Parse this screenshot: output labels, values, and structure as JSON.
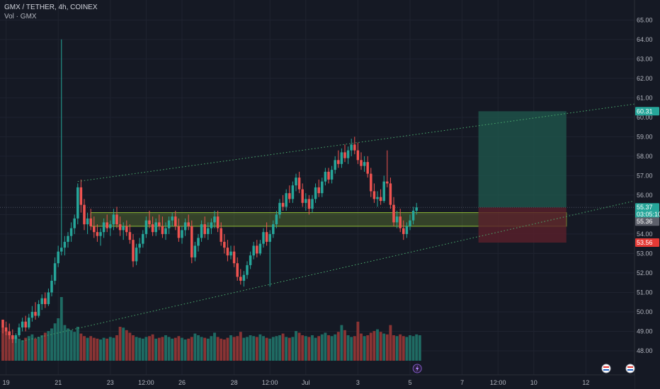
{
  "header": {
    "symbol_line": "GMX / TETHER, 4h, COINEX",
    "volume_line": "Vol · GMX"
  },
  "colors": {
    "background": "#151924",
    "grid": "#1f2330",
    "up": "#26a69a",
    "down": "#ef5350",
    "vol_up": "#1f6b63",
    "vol_down": "#8a3434",
    "zone": "#a5d63a",
    "target": "#1f5a4e",
    "stop": "#5a1f2a",
    "trend": "#4caf70"
  },
  "chart_data": {
    "type": "candlestick",
    "ylim": [
      47.2,
      65.3
    ],
    "y_ticks": [
      48,
      49,
      50,
      51,
      52,
      53,
      54,
      55,
      56,
      57,
      58,
      59,
      60,
      61,
      62,
      63,
      64,
      65
    ],
    "y_tick_labels": [
      "48.00",
      "49.00",
      "50.00",
      "51.00",
      "52.00",
      "53.00",
      "54.00",
      "55.00",
      "56.00",
      "57.00",
      "58.00",
      "59.00",
      "60.00",
      "61.00",
      "62.00",
      "63.00",
      "64.00",
      "65.00"
    ],
    "x_ticks": [
      {
        "bar": 1,
        "label": "19"
      },
      {
        "bar": 17,
        "label": "21"
      },
      {
        "bar": 33,
        "label": "23"
      },
      {
        "bar": 44,
        "label": "12:00"
      },
      {
        "bar": 55,
        "label": "26"
      },
      {
        "bar": 71,
        "label": "28"
      },
      {
        "bar": 82,
        "label": "12:00"
      },
      {
        "bar": 93,
        "label": "Jul"
      },
      {
        "bar": 109,
        "label": "3"
      },
      {
        "bar": 125,
        "label": "5"
      },
      {
        "bar": 141,
        "label": "7"
      },
      {
        "bar": 152,
        "label": "12:00"
      },
      {
        "bar": 163,
        "label": "10"
      },
      {
        "bar": 179,
        "label": "12"
      }
    ],
    "candles": [
      [
        49.6,
        49.6,
        48.9,
        49.2
      ],
      [
        49.2,
        49.5,
        48.8,
        49.0
      ],
      [
        49.0,
        49.4,
        48.6,
        48.8
      ],
      [
        48.8,
        49.1,
        48.4,
        48.6
      ],
      [
        48.6,
        48.9,
        48.4,
        48.8
      ],
      [
        48.8,
        49.4,
        48.7,
        49.2
      ],
      [
        49.2,
        49.7,
        49.0,
        49.5
      ],
      [
        49.5,
        49.8,
        49.0,
        49.2
      ],
      [
        49.2,
        49.9,
        49.1,
        49.7
      ],
      [
        49.7,
        50.3,
        49.5,
        50.0
      ],
      [
        50.0,
        50.5,
        49.6,
        49.8
      ],
      [
        49.8,
        50.6,
        49.7,
        50.4
      ],
      [
        50.4,
        50.9,
        50.1,
        50.7
      ],
      [
        50.7,
        51.0,
        50.2,
        50.4
      ],
      [
        50.4,
        51.2,
        50.3,
        51.0
      ],
      [
        51.0,
        51.9,
        50.8,
        51.6
      ],
      [
        51.6,
        52.8,
        51.4,
        52.5
      ],
      [
        52.5,
        53.4,
        52.3,
        53.1
      ],
      [
        53.1,
        64.0,
        52.9,
        53.3
      ],
      [
        53.3,
        53.9,
        52.9,
        53.6
      ],
      [
        53.6,
        54.1,
        53.3,
        53.9
      ],
      [
        53.9,
        54.6,
        53.6,
        54.3
      ],
      [
        54.3,
        55.0,
        54.0,
        54.8
      ],
      [
        54.8,
        56.6,
        54.5,
        56.4
      ],
      [
        56.4,
        56.8,
        55.1,
        55.5
      ],
      [
        55.5,
        55.8,
        54.2,
        54.5
      ],
      [
        54.5,
        55.1,
        54.0,
        54.8
      ],
      [
        54.8,
        55.3,
        54.2,
        54.4
      ],
      [
        54.4,
        54.9,
        53.8,
        54.1
      ],
      [
        54.1,
        54.5,
        53.6,
        53.9
      ],
      [
        53.9,
        54.3,
        53.4,
        54.1
      ],
      [
        54.1,
        54.8,
        53.8,
        54.6
      ],
      [
        54.6,
        55.0,
        54.1,
        54.3
      ],
      [
        54.3,
        54.7,
        53.9,
        54.5
      ],
      [
        54.5,
        55.3,
        54.2,
        55.0
      ],
      [
        55.0,
        55.4,
        54.3,
        54.5
      ],
      [
        54.5,
        54.9,
        53.9,
        54.2
      ],
      [
        54.2,
        54.6,
        53.7,
        54.4
      ],
      [
        54.4,
        54.7,
        53.9,
        54.1
      ],
      [
        54.1,
        54.5,
        53.5,
        53.7
      ],
      [
        53.7,
        54.0,
        52.3,
        52.6
      ],
      [
        52.6,
        53.5,
        52.4,
        53.3
      ],
      [
        53.3,
        53.8,
        53.0,
        53.5
      ],
      [
        53.5,
        54.2,
        53.3,
        54.0
      ],
      [
        54.0,
        54.9,
        53.8,
        54.7
      ],
      [
        54.7,
        55.2,
        54.3,
        54.5
      ],
      [
        54.5,
        54.9,
        53.9,
        54.1
      ],
      [
        54.1,
        54.8,
        53.9,
        54.6
      ],
      [
        54.6,
        55.0,
        54.2,
        54.4
      ],
      [
        54.4,
        54.9,
        53.8,
        54.0
      ],
      [
        54.0,
        54.6,
        53.7,
        54.3
      ],
      [
        54.3,
        54.9,
        54.0,
        54.7
      ],
      [
        54.7,
        55.1,
        54.4,
        54.9
      ],
      [
        54.9,
        55.2,
        54.2,
        54.4
      ],
      [
        54.4,
        54.8,
        53.6,
        53.8
      ],
      [
        53.8,
        54.4,
        53.5,
        54.2
      ],
      [
        54.2,
        54.8,
        53.9,
        54.6
      ],
      [
        54.6,
        55.0,
        54.2,
        54.4
      ],
      [
        54.4,
        54.7,
        52.5,
        52.8
      ],
      [
        52.8,
        53.6,
        52.6,
        53.4
      ],
      [
        53.4,
        54.0,
        53.1,
        53.8
      ],
      [
        53.8,
        54.7,
        53.6,
        54.5
      ],
      [
        54.5,
        54.9,
        53.8,
        54.0
      ],
      [
        54.0,
        54.6,
        53.7,
        54.3
      ],
      [
        54.3,
        54.8,
        54.0,
        54.6
      ],
      [
        54.6,
        55.2,
        54.3,
        54.9
      ],
      [
        54.9,
        55.2,
        54.1,
        54.3
      ],
      [
        54.3,
        54.6,
        53.4,
        53.6
      ],
      [
        53.6,
        54.0,
        53.0,
        53.3
      ],
      [
        53.3,
        53.7,
        52.6,
        52.9
      ],
      [
        52.9,
        53.4,
        52.7,
        53.1
      ],
      [
        53.1,
        53.4,
        52.3,
        52.5
      ],
      [
        52.5,
        52.8,
        51.6,
        51.8
      ],
      [
        51.8,
        52.2,
        51.4,
        51.6
      ],
      [
        51.6,
        52.1,
        51.3,
        51.9
      ],
      [
        51.9,
        52.6,
        51.7,
        52.4
      ],
      [
        52.4,
        53.1,
        52.2,
        52.9
      ],
      [
        52.9,
        53.6,
        52.7,
        53.4
      ],
      [
        53.4,
        53.7,
        52.8,
        53.0
      ],
      [
        53.0,
        53.7,
        52.9,
        53.5
      ],
      [
        53.5,
        54.3,
        53.3,
        54.1
      ],
      [
        54.1,
        54.6,
        53.4,
        53.6
      ],
      [
        53.6,
        54.2,
        51.3,
        54.0
      ],
      [
        54.0,
        54.7,
        53.8,
        54.5
      ],
      [
        54.5,
        55.2,
        54.3,
        55.0
      ],
      [
        55.0,
        55.8,
        54.8,
        55.6
      ],
      [
        55.6,
        56.0,
        55.2,
        55.4
      ],
      [
        55.4,
        56.3,
        55.2,
        56.1
      ],
      [
        56.1,
        56.5,
        55.6,
        55.8
      ],
      [
        55.8,
        56.7,
        55.6,
        56.5
      ],
      [
        56.5,
        57.1,
        56.2,
        56.9
      ],
      [
        56.9,
        57.2,
        56.1,
        56.3
      ],
      [
        56.3,
        56.6,
        55.4,
        55.6
      ],
      [
        55.6,
        56.1,
        55.2,
        55.8
      ],
      [
        55.8,
        56.0,
        55.0,
        55.3
      ],
      [
        55.3,
        56.0,
        55.1,
        55.8
      ],
      [
        55.8,
        56.6,
        55.6,
        56.4
      ],
      [
        56.4,
        56.8,
        55.9,
        56.1
      ],
      [
        56.1,
        56.9,
        55.9,
        56.7
      ],
      [
        56.7,
        57.4,
        56.5,
        57.2
      ],
      [
        57.2,
        57.4,
        56.6,
        56.8
      ],
      [
        56.8,
        57.5,
        56.6,
        57.3
      ],
      [
        57.3,
        58.0,
        57.1,
        57.8
      ],
      [
        57.8,
        58.3,
        57.4,
        57.6
      ],
      [
        57.6,
        58.4,
        57.4,
        58.2
      ],
      [
        58.2,
        58.6,
        57.7,
        57.9
      ],
      [
        57.9,
        58.5,
        57.6,
        58.3
      ],
      [
        58.3,
        58.9,
        58.0,
        58.6
      ],
      [
        58.6,
        59.0,
        58.1,
        58.3
      ],
      [
        58.3,
        58.7,
        57.6,
        57.8
      ],
      [
        57.8,
        58.2,
        57.3,
        57.5
      ],
      [
        57.5,
        58.0,
        57.2,
        57.7
      ],
      [
        57.7,
        58.0,
        56.9,
        57.1
      ],
      [
        57.1,
        57.4,
        55.9,
        56.2
      ],
      [
        56.2,
        56.6,
        55.6,
        55.8
      ],
      [
        55.8,
        56.2,
        55.4,
        55.9
      ],
      [
        55.9,
        56.3,
        55.5,
        55.7
      ],
      [
        55.7,
        57.0,
        55.6,
        56.7
      ],
      [
        56.7,
        58.3,
        56.4,
        56.6
      ],
      [
        56.6,
        56.9,
        55.3,
        55.5
      ],
      [
        55.5,
        55.9,
        54.4,
        54.6
      ],
      [
        54.6,
        55.2,
        54.3,
        54.9
      ],
      [
        54.9,
        55.3,
        54.1,
        54.3
      ],
      [
        54.3,
        54.7,
        53.7,
        54.0
      ],
      [
        54.0,
        54.6,
        53.8,
        54.4
      ],
      [
        54.4,
        55.0,
        54.2,
        54.7
      ],
      [
        54.7,
        55.4,
        54.5,
        55.2
      ],
      [
        55.2,
        55.6,
        55.0,
        55.37
      ]
    ],
    "volume_ylim": [
      0,
      100
    ],
    "volumes": [
      40,
      36,
      34,
      30,
      28,
      26,
      24,
      27,
      29,
      31,
      26,
      28,
      30,
      33,
      35,
      38,
      44,
      50,
      75,
      42,
      38,
      36,
      34,
      40,
      32,
      29,
      27,
      29,
      27,
      26,
      25,
      27,
      26,
      28,
      27,
      30,
      40,
      39,
      36,
      33,
      30,
      28,
      27,
      26,
      28,
      29,
      31,
      26,
      27,
      28,
      30,
      28,
      26,
      27,
      29,
      27,
      25,
      26,
      28,
      32,
      30,
      28,
      27,
      26,
      29,
      33,
      28,
      26,
      25,
      27,
      30,
      28,
      29,
      34,
      27,
      28,
      30,
      29,
      28,
      31,
      29,
      27,
      26,
      28,
      29,
      30,
      32,
      28,
      27,
      28,
      35,
      33,
      30,
      29,
      28,
      30,
      27,
      29,
      31,
      33,
      30,
      29,
      31,
      34,
      42,
      36,
      30,
      28,
      29,
      46,
      32,
      29,
      30,
      33,
      35,
      37,
      34,
      32,
      31,
      42,
      30,
      29,
      31,
      29,
      28,
      30,
      29,
      31,
      30
    ],
    "trendlines": [
      {
        "from": [
          23,
          56.7
        ],
        "to": [
          199,
          60.8
        ]
      },
      {
        "from": [
          6,
          48.5
        ],
        "to": [
          199,
          55.9
        ]
      }
    ],
    "zone": {
      "from_bar": 27,
      "to_bar": 173,
      "low": 54.4,
      "high": 55.1
    },
    "position": {
      "from_bar": 146,
      "to_bar": 173,
      "entry": 55.37,
      "target": 60.31,
      "stop": 53.56,
      "mid": 55.36
    },
    "price_labels": {
      "target": "60.31",
      "last": "55.37",
      "countdown": "03:05:10",
      "mid": "55.36",
      "stop": "53.56"
    },
    "grid": true,
    "legend": "top-left"
  }
}
